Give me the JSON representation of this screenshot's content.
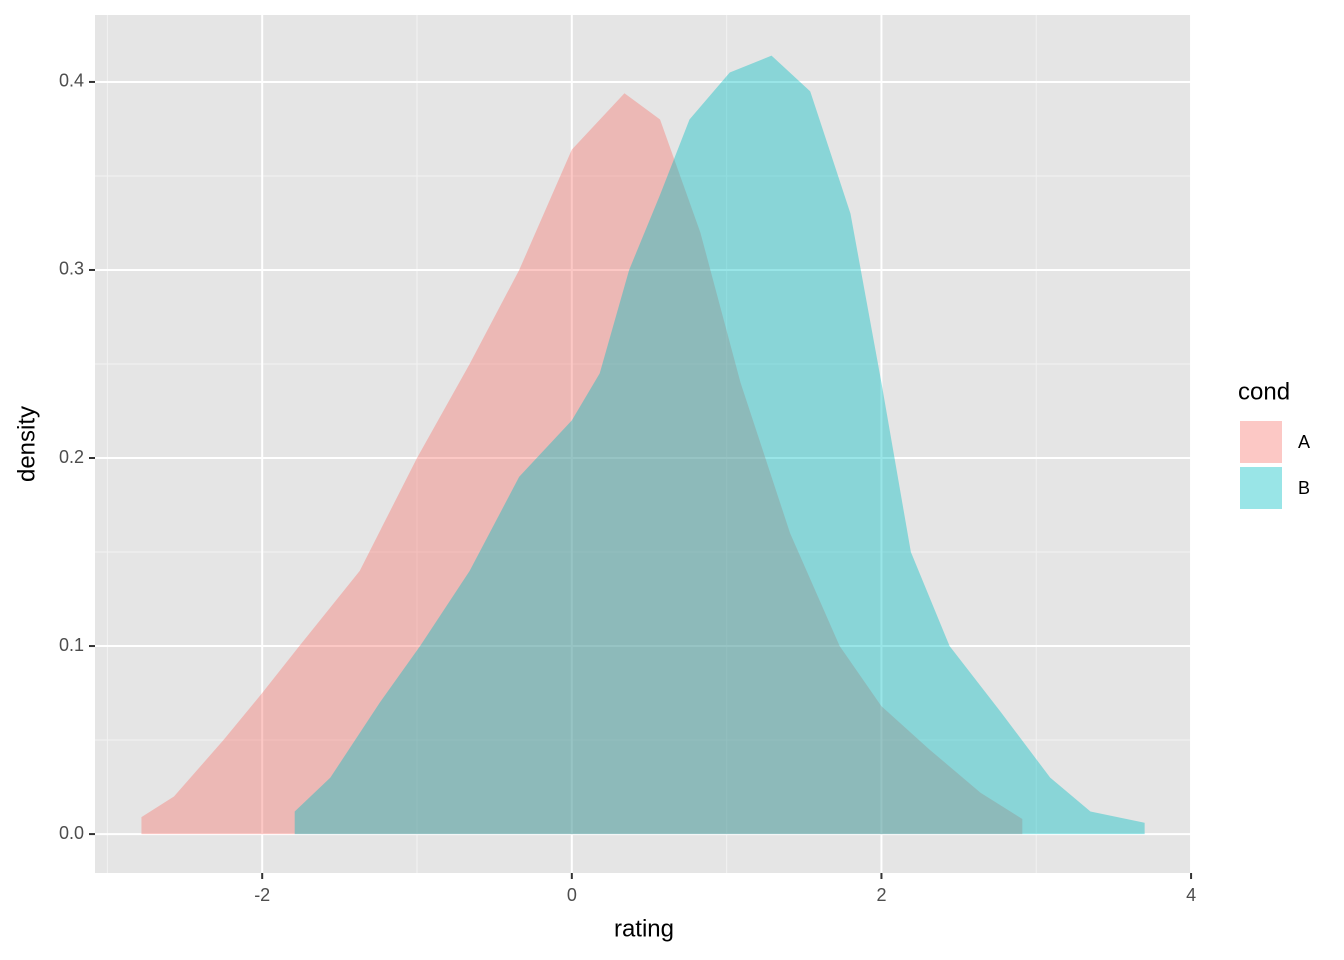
{
  "chart_data": {
    "type": "density",
    "x_label": "rating",
    "y_label": "density",
    "legend_title": "cond",
    "xlim": [
      -3.08,
      4.006
    ],
    "ylim": [
      -0.0207,
      0.4356
    ],
    "xticks": [
      -2,
      0,
      2,
      4
    ],
    "yticks": [
      {
        "value": 0,
        "label": "0.0"
      },
      0.1,
      0.2,
      0.3,
      0.4
    ],
    "xminor": [
      -3,
      -1,
      1,
      3
    ],
    "yminor": [
      0.05,
      0.15,
      0.25,
      0.35
    ],
    "grid": true,
    "fill_opacity": 0.4,
    "legend": "right",
    "series": [
      {
        "name": "A",
        "color": "#F8766D",
        "x": [
          -2.78,
          -2.57,
          -2.25,
          -2.0,
          -1.76,
          -1.37,
          -1.0,
          -0.66,
          -0.34,
          0.0,
          0.34,
          0.57,
          0.83,
          1.09,
          1.41,
          1.73,
          2.0,
          2.31,
          2.64,
          2.91
        ],
        "values": [
          0.009,
          0.02,
          0.05,
          0.075,
          0.1,
          0.14,
          0.2,
          0.25,
          0.3,
          0.364,
          0.394,
          0.38,
          0.32,
          0.24,
          0.16,
          0.1,
          0.068,
          0.045,
          0.022,
          0.008
        ]
      },
      {
        "name": "B",
        "color": "#00BFC4",
        "x": [
          -1.79,
          -1.56,
          -1.24,
          -0.98,
          -0.66,
          -0.34,
          0.0,
          0.18,
          0.37,
          0.57,
          0.76,
          1.02,
          1.29,
          1.54,
          1.8,
          2.0,
          2.19,
          2.44,
          2.77,
          3.09,
          3.35,
          3.7
        ],
        "values": [
          0.012,
          0.03,
          0.07,
          0.1,
          0.14,
          0.19,
          0.22,
          0.245,
          0.3,
          0.34,
          0.38,
          0.405,
          0.414,
          0.395,
          0.33,
          0.24,
          0.15,
          0.1,
          0.065,
          0.03,
          0.012,
          0.006
        ]
      }
    ]
  }
}
